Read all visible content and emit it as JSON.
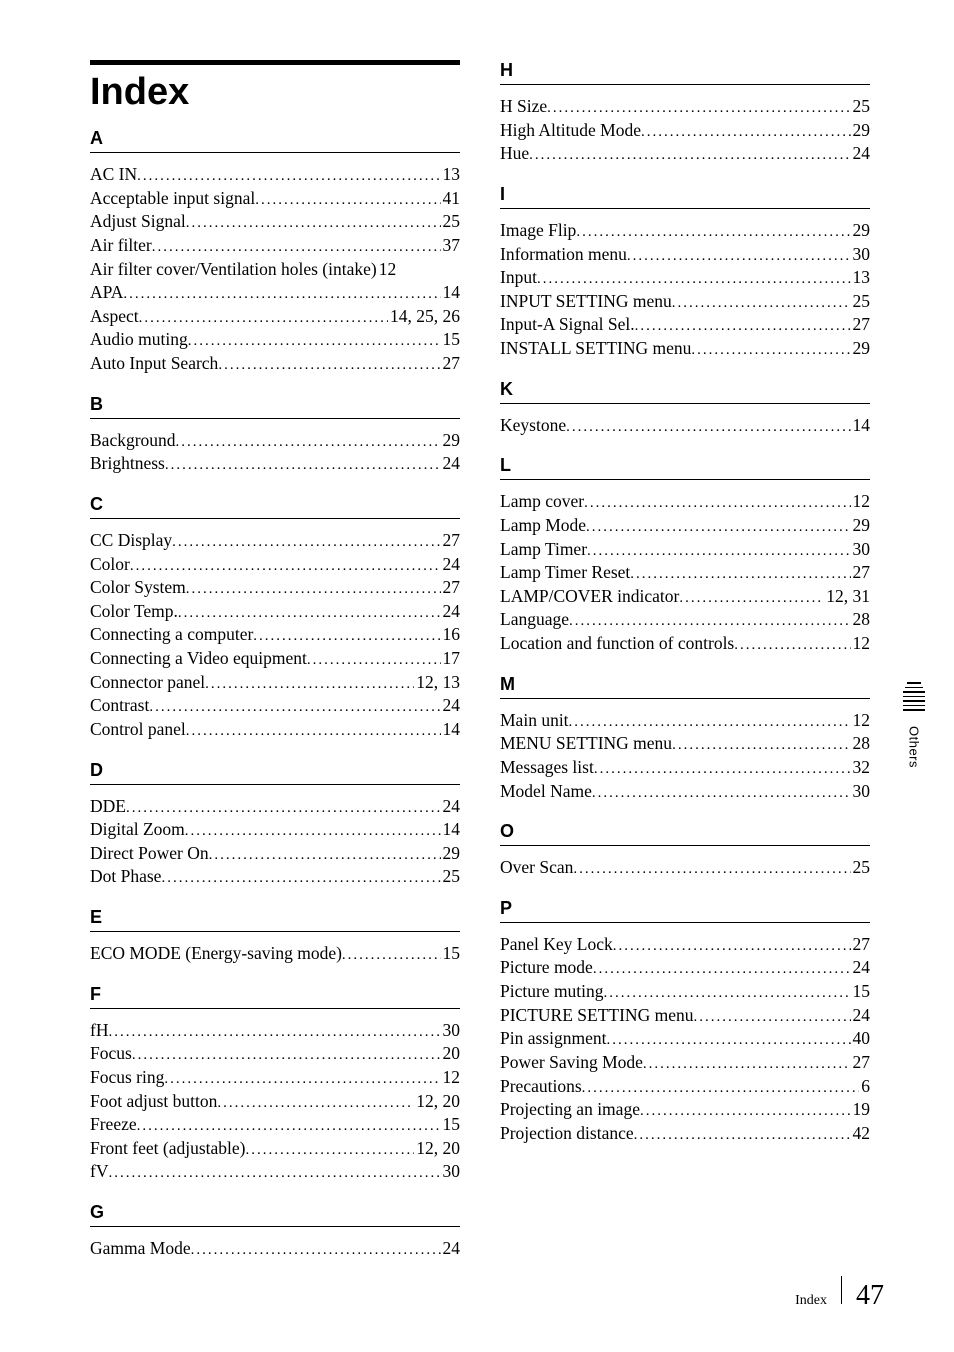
{
  "title": "Index",
  "leftColumn": [
    {
      "letter": "A",
      "entries": [
        {
          "label": "AC IN",
          "page": "13"
        },
        {
          "label": "Acceptable input signal",
          "page": "41"
        },
        {
          "label": "Adjust Signal",
          "page": "25"
        },
        {
          "label": "Air filter",
          "page": "37"
        },
        {
          "label": "Air filter cover/Ventilation holes (intake)",
          "page": "12"
        },
        {
          "label": "APA",
          "page": "14"
        },
        {
          "label": "Aspect",
          "page": "14, 25, 26"
        },
        {
          "label": "Audio muting",
          "page": "15"
        },
        {
          "label": "Auto Input Search",
          "page": "27"
        }
      ]
    },
    {
      "letter": "B",
      "entries": [
        {
          "label": "Background",
          "page": "29"
        },
        {
          "label": "Brightness",
          "page": "24"
        }
      ]
    },
    {
      "letter": "C",
      "entries": [
        {
          "label": "CC Display",
          "page": "27"
        },
        {
          "label": "Color",
          "page": "24"
        },
        {
          "label": "Color System",
          "page": "27"
        },
        {
          "label": "Color Temp.",
          "page": "24"
        },
        {
          "label": "Connecting a computer",
          "page": "16"
        },
        {
          "label": "Connecting a Video equipment",
          "page": "17"
        },
        {
          "label": "Connector panel",
          "page": "12, 13"
        },
        {
          "label": "Contrast",
          "page": "24"
        },
        {
          "label": "Control panel",
          "page": "14"
        }
      ]
    },
    {
      "letter": "D",
      "entries": [
        {
          "label": "DDE",
          "page": "24"
        },
        {
          "label": "Digital Zoom",
          "page": "14"
        },
        {
          "label": "Direct Power On",
          "page": "29"
        },
        {
          "label": "Dot Phase",
          "page": "25"
        }
      ]
    },
    {
      "letter": "E",
      "entries": [
        {
          "label": "ECO MODE (Energy-saving mode)",
          "page": "15"
        }
      ]
    },
    {
      "letter": "F",
      "entries": [
        {
          "label": "fH",
          "page": "30"
        },
        {
          "label": "Focus",
          "page": "20"
        },
        {
          "label": "Focus ring",
          "page": "12"
        },
        {
          "label": "Foot adjust button",
          "page": "12, 20"
        },
        {
          "label": "Freeze",
          "page": "15"
        },
        {
          "label": "Front feet (adjustable)",
          "page": "12, 20"
        },
        {
          "label": "fV",
          "page": "30"
        }
      ]
    },
    {
      "letter": "G",
      "entries": [
        {
          "label": "Gamma Mode",
          "page": "24"
        }
      ]
    }
  ],
  "rightColumn": [
    {
      "letter": "H",
      "entries": [
        {
          "label": "H Size",
          "page": "25"
        },
        {
          "label": "High Altitude Mode",
          "page": "29"
        },
        {
          "label": "Hue",
          "page": "24"
        }
      ]
    },
    {
      "letter": "I",
      "entries": [
        {
          "label": "Image Flip",
          "page": "29"
        },
        {
          "label": "Information menu",
          "page": "30"
        },
        {
          "label": "Input",
          "page": "13"
        },
        {
          "label": "INPUT SETTING menu",
          "page": "25"
        },
        {
          "label": "Input-A Signal Sel.",
          "page": "27"
        },
        {
          "label": "INSTALL SETTING menu",
          "page": "29"
        }
      ]
    },
    {
      "letter": "K",
      "entries": [
        {
          "label": "Keystone",
          "page": "14"
        }
      ]
    },
    {
      "letter": "L",
      "entries": [
        {
          "label": "Lamp cover",
          "page": "12"
        },
        {
          "label": "Lamp Mode",
          "page": "29"
        },
        {
          "label": "Lamp Timer",
          "page": "30"
        },
        {
          "label": "Lamp Timer Reset",
          "page": "27"
        },
        {
          "label": "LAMP/COVER indicator",
          "page": "12, 31"
        },
        {
          "label": "Language",
          "page": "28"
        },
        {
          "label": "Location and function of controls",
          "page": "12"
        }
      ]
    },
    {
      "letter": "M",
      "entries": [
        {
          "label": "Main unit",
          "page": "12"
        },
        {
          "label": "MENU SETTING menu",
          "page": "28"
        },
        {
          "label": "Messages list",
          "page": "32"
        },
        {
          "label": "Model Name",
          "page": "30"
        }
      ]
    },
    {
      "letter": "O",
      "entries": [
        {
          "label": "Over Scan",
          "page": "25"
        }
      ]
    },
    {
      "letter": "P",
      "entries": [
        {
          "label": "Panel Key Lock",
          "page": "27"
        },
        {
          "label": "Picture mode",
          "page": "24"
        },
        {
          "label": "Picture muting",
          "page": "15"
        },
        {
          "label": "PICTURE SETTING menu",
          "page": "24"
        },
        {
          "label": "Pin assignment",
          "page": "40"
        },
        {
          "label": "Power Saving Mode",
          "page": "27"
        },
        {
          "label": "Precautions",
          "page": "6"
        },
        {
          "label": "Projecting an image",
          "page": "19"
        },
        {
          "label": "Projection distance",
          "page": "42"
        }
      ]
    }
  ],
  "sideTab": "Others",
  "footerLabel": "Index",
  "footerPage": "47"
}
